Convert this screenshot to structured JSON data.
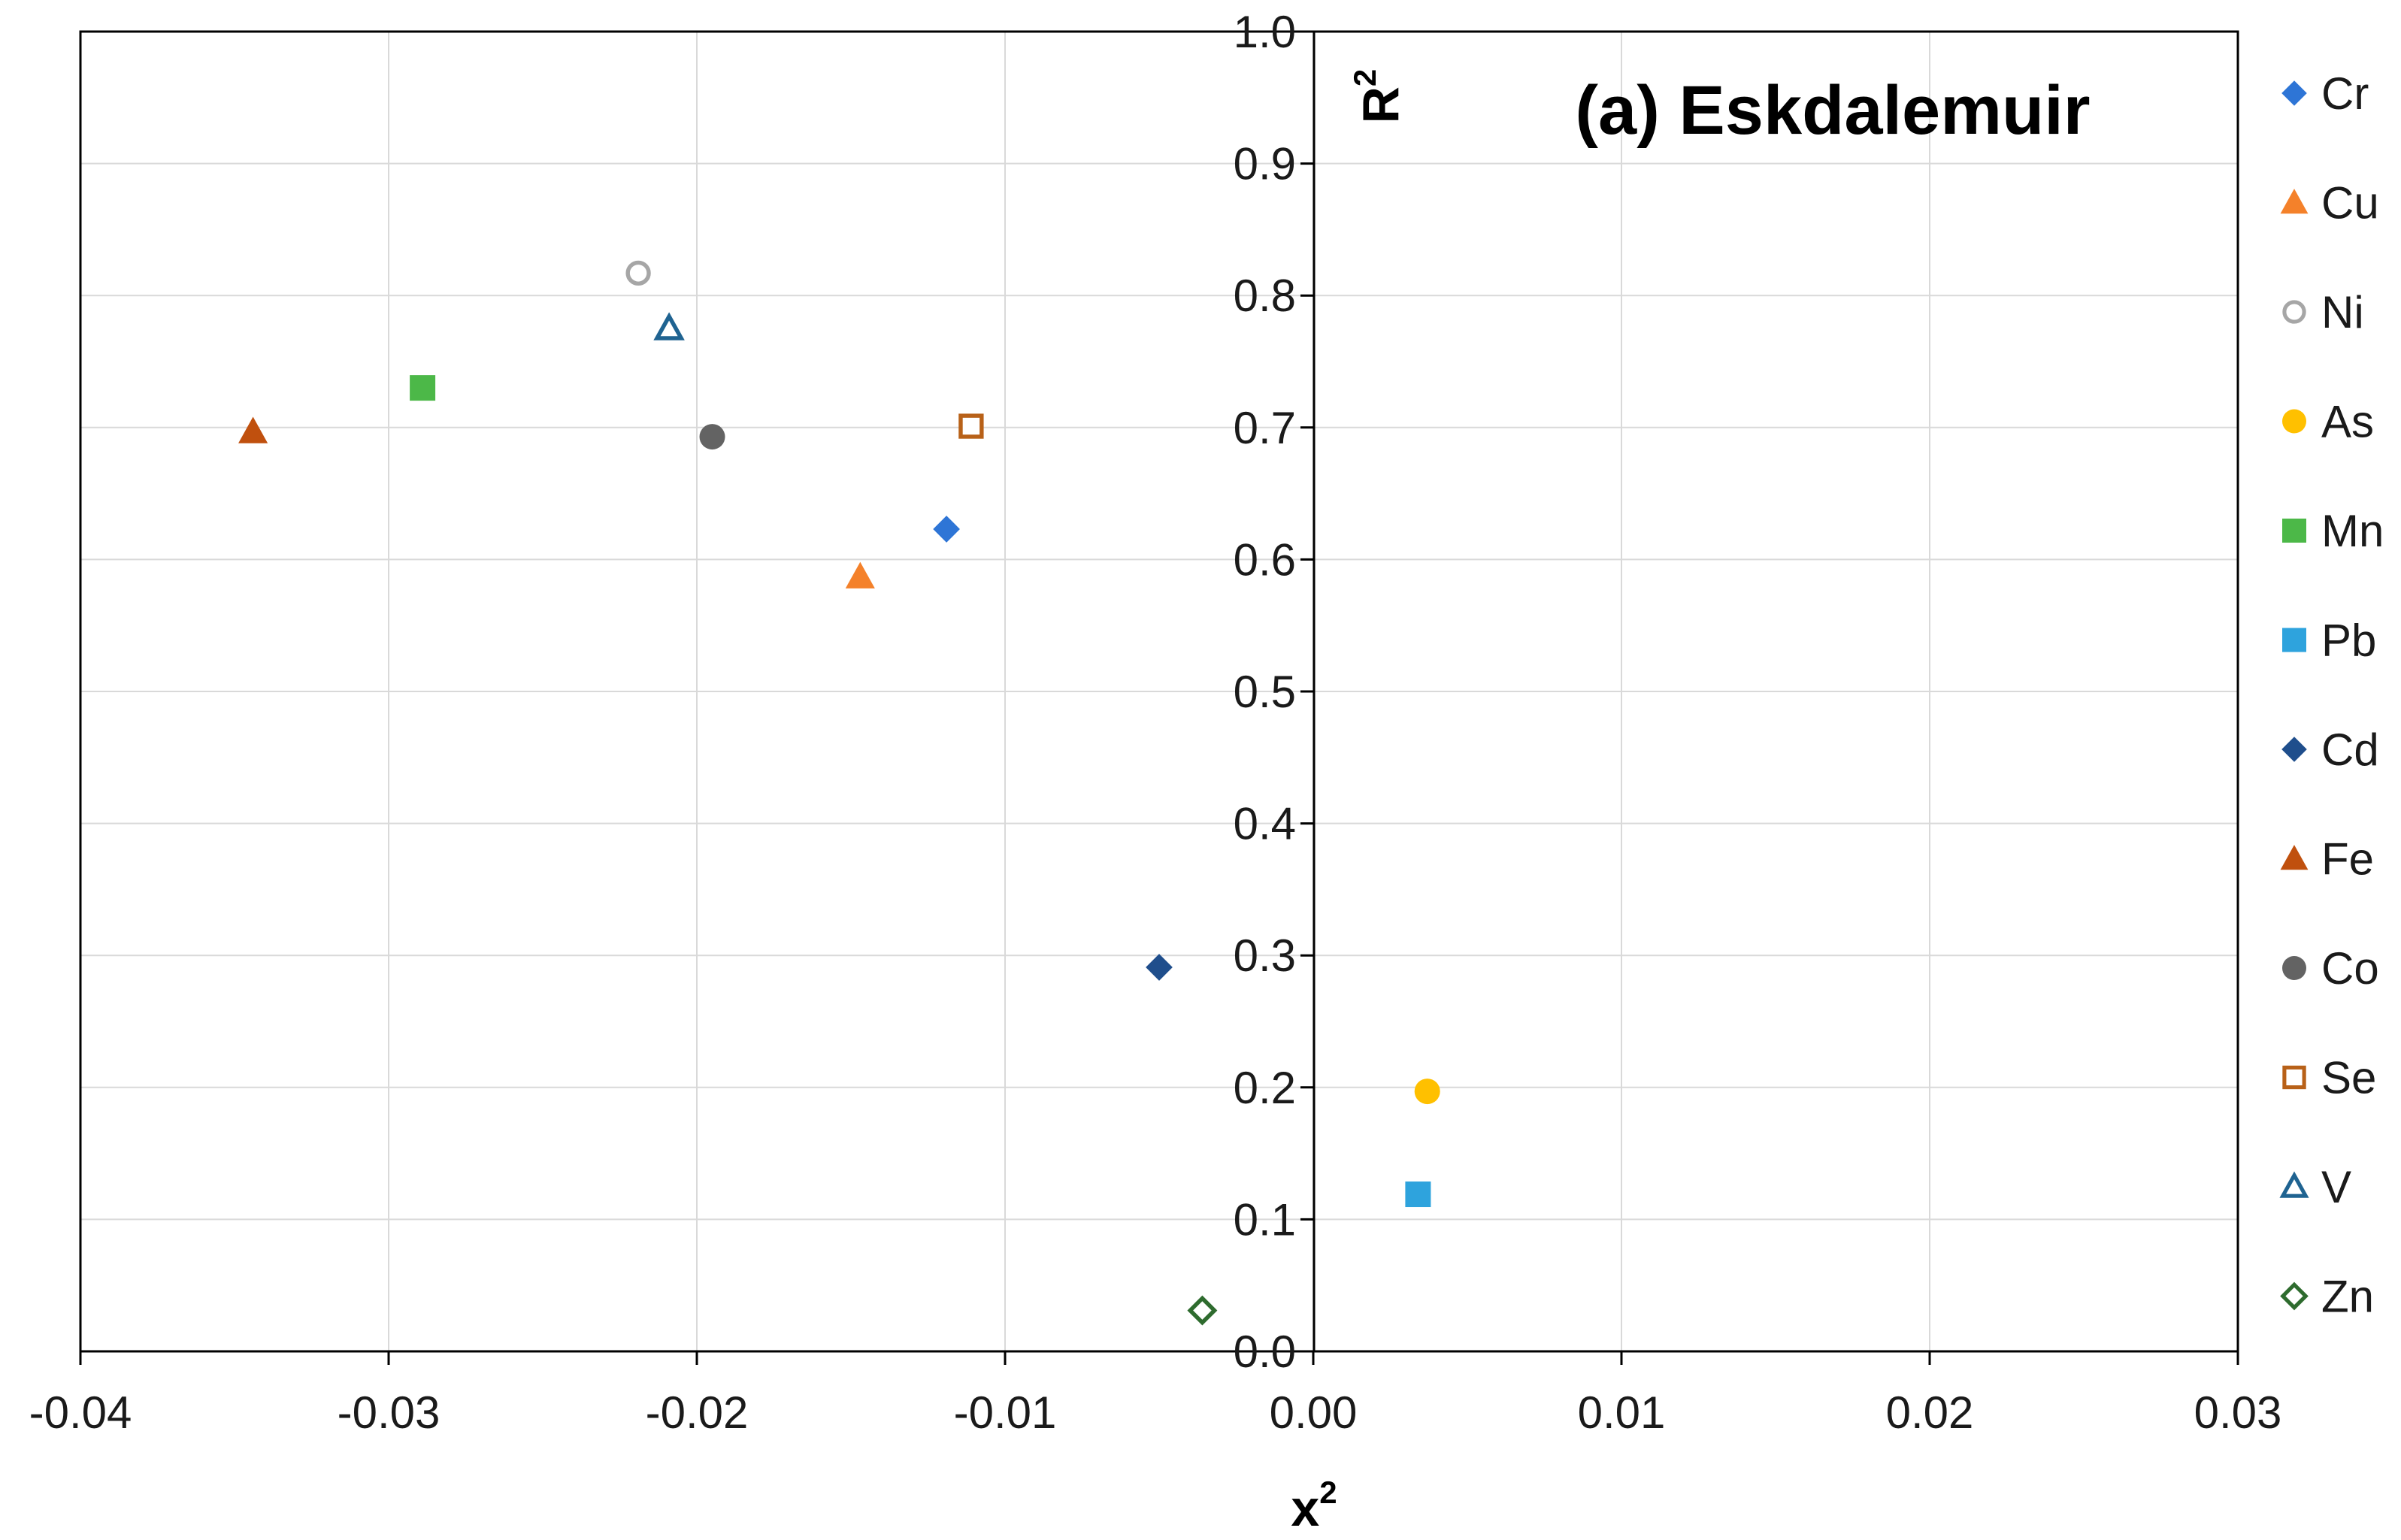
{
  "chart_data": {
    "type": "scatter",
    "title": "(a) Eskdalemuir",
    "xlabel": {
      "base": "x",
      "sup": "2"
    },
    "ylabel": {
      "base": "R",
      "sup": "2"
    },
    "xlim": [
      -0.04,
      0.03
    ],
    "ylim": [
      0.0,
      1.0
    ],
    "grid": true,
    "legend_position": "right",
    "x_ticks": [
      {
        "value": -0.04,
        "label": "-0.04"
      },
      {
        "value": -0.03,
        "label": "-0.03"
      },
      {
        "value": -0.02,
        "label": "-0.02"
      },
      {
        "value": -0.01,
        "label": "-0.01"
      },
      {
        "value": 0.0,
        "label": "0.00"
      },
      {
        "value": 0.01,
        "label": "0.01"
      },
      {
        "value": 0.02,
        "label": "0.02"
      },
      {
        "value": 0.03,
        "label": "0.03"
      }
    ],
    "y_ticks": [
      {
        "value": 0.0,
        "label": "0.0"
      },
      {
        "value": 0.1,
        "label": "0.1"
      },
      {
        "value": 0.2,
        "label": "0.2"
      },
      {
        "value": 0.3,
        "label": "0.3"
      },
      {
        "value": 0.4,
        "label": "0.4"
      },
      {
        "value": 0.5,
        "label": "0.5"
      },
      {
        "value": 0.6,
        "label": "0.6"
      },
      {
        "value": 0.7,
        "label": "0.7"
      },
      {
        "value": 0.8,
        "label": "0.8"
      },
      {
        "value": 0.9,
        "label": "0.9"
      },
      {
        "value": 1.0,
        "label": "1.0"
      }
    ],
    "series": [
      {
        "name": "Cr",
        "x": -0.0119,
        "y": 0.623,
        "marker": "diamond",
        "fill": true,
        "color": "#2E75D6"
      },
      {
        "name": "Cu",
        "x": -0.0147,
        "y": 0.587,
        "marker": "triangle",
        "fill": true,
        "color": "#F4812A"
      },
      {
        "name": "Ni",
        "x": -0.0219,
        "y": 0.817,
        "marker": "circle",
        "fill": false,
        "color": "#A6A6A6"
      },
      {
        "name": "As",
        "x": 0.0037,
        "y": 0.197,
        "marker": "circle",
        "fill": true,
        "color": "#FFC000"
      },
      {
        "name": "Mn",
        "x": -0.0289,
        "y": 0.73,
        "marker": "square",
        "fill": true,
        "color": "#4CB848"
      },
      {
        "name": "Pb",
        "x": 0.0034,
        "y": 0.119,
        "marker": "square",
        "fill": true,
        "color": "#2EA3DD"
      },
      {
        "name": "Cd",
        "x": -0.005,
        "y": 0.291,
        "marker": "diamond",
        "fill": true,
        "color": "#1F4E8C"
      },
      {
        "name": "Fe",
        "x": -0.0344,
        "y": 0.697,
        "marker": "triangle",
        "fill": true,
        "color": "#C0500E"
      },
      {
        "name": "Co",
        "x": -0.0195,
        "y": 0.693,
        "marker": "circle",
        "fill": true,
        "color": "#636363"
      },
      {
        "name": "Se",
        "x": -0.0111,
        "y": 0.701,
        "marker": "square",
        "fill": false,
        "color": "#B86118"
      },
      {
        "name": "V",
        "x": -0.0209,
        "y": 0.775,
        "marker": "triangle",
        "fill": false,
        "color": "#1F6391"
      },
      {
        "name": "Zn",
        "x": -0.0036,
        "y": 0.031,
        "marker": "diamond",
        "fill": false,
        "color": "#2E6B2E"
      }
    ]
  }
}
